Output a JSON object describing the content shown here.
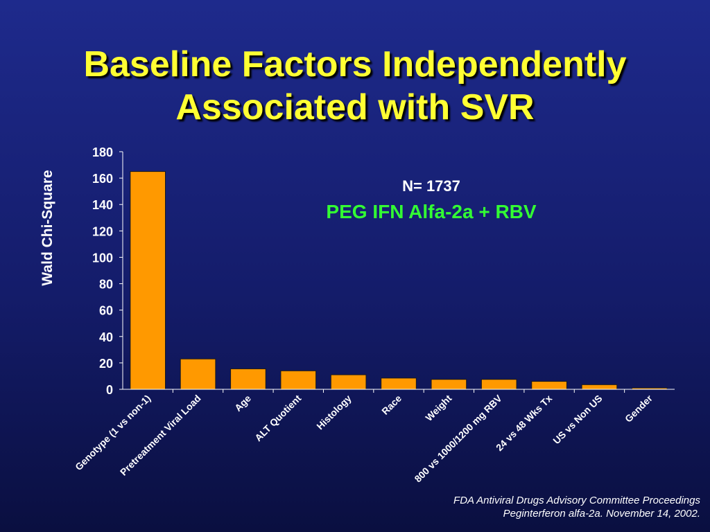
{
  "title": {
    "line1": "Baseline Factors Independently",
    "line2": "Associated with SVR"
  },
  "annotation": {
    "n_label": "N= 1737",
    "regimen": "PEG IFN Alfa-2a + RBV"
  },
  "footer": {
    "line1": "FDA Antiviral Drugs Advisory Committee Proceedings",
    "line2": "Peginterferon alfa-2a.  November 14, 2002."
  },
  "colors": {
    "title": "#ffff33",
    "bar": "#ff9900",
    "regimen": "#33ff33",
    "background": "#141c6a"
  },
  "chart_data": {
    "type": "bar",
    "title": "Baseline Factors Independently Associated with SVR",
    "xlabel": "",
    "ylabel": "Wald Chi-Square",
    "ylim": [
      0,
      180
    ],
    "yticks": [
      0,
      20,
      40,
      60,
      80,
      100,
      120,
      140,
      160,
      180
    ],
    "grid": false,
    "categories": [
      "Genotype (1 vs non-1)",
      "Pretreatment Viral Load",
      "Age",
      "ALT Quotient",
      "Histology",
      "Race",
      "Weight",
      "800 vs 1000/1200 mg RBV",
      "24 vs 48 Wks Tx",
      "US vs Non US",
      "Gender"
    ],
    "values": [
      165,
      23,
      15.5,
      14,
      11,
      8.5,
      7.5,
      7.5,
      6,
      3.5,
      1
    ]
  }
}
